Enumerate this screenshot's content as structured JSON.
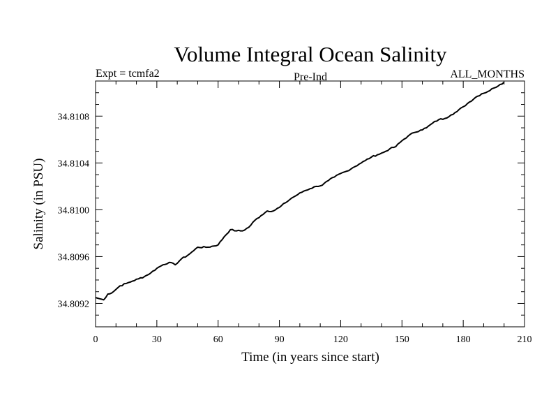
{
  "chart_data": {
    "type": "line",
    "title": "Volume Integral Ocean Salinity",
    "subtitle_left": "Expt = tcmfa2",
    "subtitle_center": "Pre-Ind",
    "subtitle_right": "ALL_MONTHS",
    "xlabel": "Time (in years since start)",
    "ylabel": "Salinity (in PSU)",
    "xlim": [
      0,
      210
    ],
    "ylim": [
      34.809,
      34.8111
    ],
    "xticks": [
      0,
      30,
      60,
      90,
      120,
      150,
      180,
      210
    ],
    "xtick_labels": [
      "0",
      "30",
      "60",
      "90",
      "120",
      "150",
      "180",
      "210"
    ],
    "yticks": [
      34.8092,
      34.8096,
      34.81,
      34.8104,
      34.8108
    ],
    "ytick_labels": [
      "34.8092",
      "34.8096",
      "34.8100",
      "34.8104",
      "34.8108"
    ],
    "grid": false,
    "line_color": "#000000",
    "series": [
      {
        "name": "Salinity",
        "x": [
          0,
          2,
          4,
          6,
          8,
          10,
          12,
          15,
          18,
          21,
          24,
          27,
          30,
          33,
          36,
          39,
          42,
          45,
          48,
          50,
          55,
          60,
          63,
          66,
          69,
          72,
          75,
          78,
          81,
          84,
          87,
          90,
          93,
          96,
          99,
          102,
          105,
          108,
          111,
          114,
          117,
          120,
          123,
          126,
          129,
          132,
          135,
          138,
          141,
          144,
          147,
          150,
          153,
          156,
          159,
          162,
          165,
          168,
          171,
          174,
          177,
          180,
          183,
          186,
          189,
          192,
          195,
          198,
          200
        ],
        "values": [
          34.80925,
          34.80924,
          34.80923,
          34.80928,
          34.80929,
          34.80932,
          34.80935,
          34.80937,
          34.80939,
          34.80941,
          34.80943,
          34.80946,
          34.8095,
          34.80953,
          34.80955,
          34.80953,
          34.80958,
          34.80961,
          34.80965,
          34.80968,
          34.80968,
          34.8097,
          34.80977,
          34.80983,
          34.80982,
          34.80982,
          34.80985,
          34.80991,
          34.80995,
          34.80999,
          34.80999,
          34.81002,
          34.81006,
          34.8101,
          34.81013,
          34.81016,
          34.81018,
          34.8102,
          34.81021,
          34.81025,
          34.81028,
          34.81031,
          34.81033,
          34.81036,
          34.81039,
          34.81042,
          34.81045,
          34.81047,
          34.81049,
          34.81052,
          34.81054,
          34.81059,
          34.81063,
          34.81066,
          34.81068,
          34.8107,
          34.81074,
          34.81077,
          34.81078,
          34.81081,
          34.81084,
          34.81088,
          34.81092,
          34.81096,
          34.81099,
          34.81101,
          34.81104,
          34.81107,
          34.81109
        ]
      }
    ]
  }
}
